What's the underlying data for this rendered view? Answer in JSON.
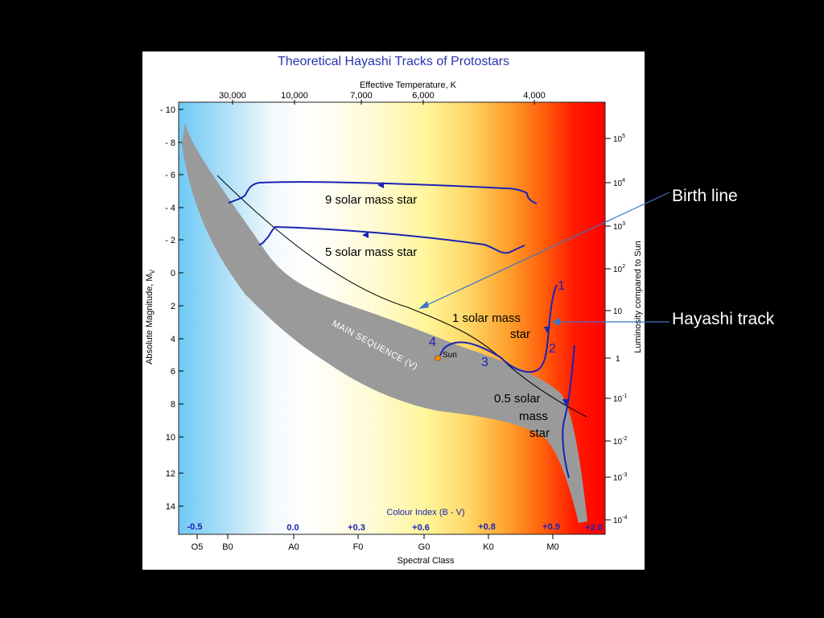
{
  "figure": {
    "title": "Theoretical Hayashi Tracks of Protostars",
    "top_axis_label": "Effective Temperature, K",
    "top_ticks": [
      "30,000",
      "10,000",
      "7,000",
      "6,000",
      "4,000"
    ],
    "left_axis_label": "Absolute Magnitude, M",
    "left_axis_label_sub": "V",
    "left_ticks": [
      "- 10",
      "- 8",
      "- 6",
      "- 4",
      "- 2",
      "0",
      "2",
      "4",
      "6",
      "8",
      "10",
      "12",
      "14"
    ],
    "right_axis_label": "Luminosity compared to Sun",
    "right_ticks": [
      {
        "base": "10",
        "exp": "5"
      },
      {
        "base": "10",
        "exp": "4"
      },
      {
        "base": "10",
        "exp": "3"
      },
      {
        "base": "10",
        "exp": "2"
      },
      {
        "base": "10",
        "exp": ""
      },
      {
        "base": "1",
        "exp": ""
      },
      {
        "base": "10",
        "exp": "-1"
      },
      {
        "base": "10",
        "exp": "-2"
      },
      {
        "base": "10",
        "exp": "-3"
      },
      {
        "base": "10",
        "exp": "-4"
      }
    ],
    "colour_index_label": "Colour Index (B - V)",
    "colour_index_values": [
      "-0.5",
      "0.0",
      "+0.3",
      "+0.6",
      "+0.8",
      "+0.9",
      "+2.0"
    ],
    "spectral_classes": [
      "O5",
      "B0",
      "A0",
      "F0",
      "G0",
      "K0",
      "M0"
    ],
    "bottom_axis_label": "Spectral Class",
    "main_sequence_label": "MAIN SEQUENCE (V)",
    "sun_label": "Sun",
    "track_labels": {
      "nine": "9 solar mass star",
      "five": "5 solar mass star",
      "one_line1": "1 solar mass",
      "one_line2": "star",
      "half_line1": "0.5 solar",
      "half_line2": "mass",
      "half_line3": "star"
    },
    "stage_numbers": [
      "1",
      "2",
      "3",
      "4"
    ],
    "colors": {
      "track": "#1b23b5",
      "title": "#2a35b0",
      "main_sequence": "#9a9a9a",
      "sun": "#f08a00"
    }
  },
  "callouts": {
    "birth_line": "Birth line",
    "hayashi_track": "Hayashi track"
  }
}
